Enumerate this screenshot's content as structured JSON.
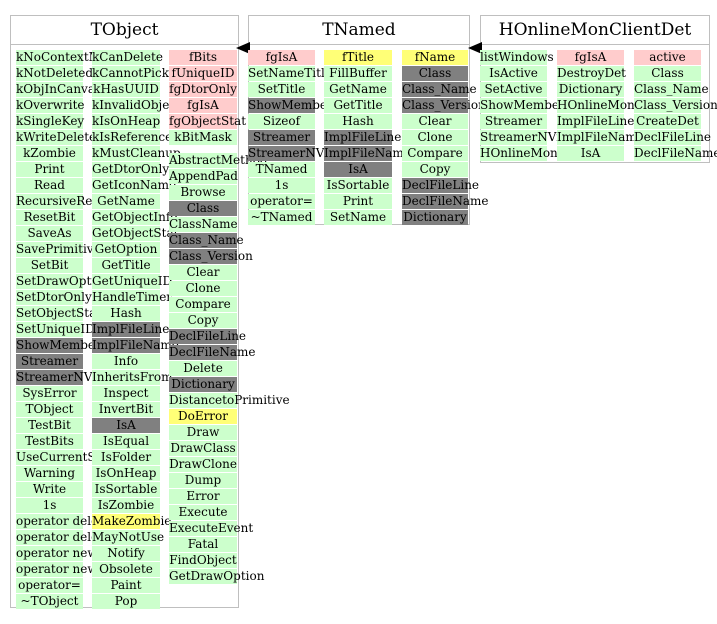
{
  "classes": [
    {
      "title": "TObject",
      "columns": [
        {
          "sections": [
            [
              {
                "t": "kNoContextMenu",
                "c": "g"
              },
              {
                "t": "kNotDeleted",
                "c": "g"
              },
              {
                "t": "kObjInCanvas",
                "c": "g"
              },
              {
                "t": "kOverwrite",
                "c": "g"
              },
              {
                "t": "kSingleKey",
                "c": "g"
              },
              {
                "t": "kWriteDelete",
                "c": "g"
              },
              {
                "t": "kZombie",
                "c": "g"
              },
              {
                "t": "Print",
                "c": "g"
              },
              {
                "t": "Read",
                "c": "g"
              },
              {
                "t": "RecursiveRemove",
                "c": "g"
              },
              {
                "t": "ResetBit",
                "c": "g"
              },
              {
                "t": "SaveAs",
                "c": "g"
              },
              {
                "t": "SavePrimitive",
                "c": "g"
              },
              {
                "t": "SetBit",
                "c": "g"
              },
              {
                "t": "SetDrawOption",
                "c": "g"
              },
              {
                "t": "SetDtorOnly",
                "c": "g"
              },
              {
                "t": "SetObjectStat",
                "c": "g"
              },
              {
                "t": "SetUniqueID",
                "c": "g"
              },
              {
                "t": "ShowMembers",
                "c": "d"
              },
              {
                "t": "Streamer",
                "c": "d"
              },
              {
                "t": "StreamerNVirtual",
                "c": "d"
              },
              {
                "t": "SysError",
                "c": "g"
              },
              {
                "t": "TObject",
                "c": "g"
              },
              {
                "t": "TestBit",
                "c": "g"
              },
              {
                "t": "TestBits",
                "c": "g"
              },
              {
                "t": "UseCurrentStyle",
                "c": "g"
              },
              {
                "t": "Warning",
                "c": "g"
              },
              {
                "t": "Write",
                "c": "g"
              },
              {
                "t": "1s",
                "c": "g"
              },
              {
                "t": "operator delete",
                "c": "g"
              },
              {
                "t": "operator delete[]",
                "c": "g"
              },
              {
                "t": "operator new",
                "c": "g"
              },
              {
                "t": "operator new[]",
                "c": "g"
              },
              {
                "t": "operator=",
                "c": "g"
              },
              {
                "t": "~TObject",
                "c": "g"
              }
            ]
          ]
        },
        {
          "sections": [
            [
              {
                "t": "kCanDelete",
                "c": "g"
              },
              {
                "t": "kCannotPick",
                "c": "g"
              },
              {
                "t": "kHasUUID",
                "c": "g"
              },
              {
                "t": "kInvalidObject",
                "c": "g"
              },
              {
                "t": "kIsOnHeap",
                "c": "g"
              },
              {
                "t": "kIsReferenced",
                "c": "g"
              },
              {
                "t": "kMustCleanup",
                "c": "g"
              },
              {
                "t": "GetDtorOnly",
                "c": "g"
              },
              {
                "t": "GetIconName",
                "c": "g"
              },
              {
                "t": "GetName",
                "c": "g"
              },
              {
                "t": "GetObjectInfo",
                "c": "g"
              },
              {
                "t": "GetObjectStat",
                "c": "g"
              },
              {
                "t": "GetOption",
                "c": "g"
              },
              {
                "t": "GetTitle",
                "c": "g"
              },
              {
                "t": "GetUniqueID",
                "c": "g"
              },
              {
                "t": "HandleTimer",
                "c": "g"
              },
              {
                "t": "Hash",
                "c": "g"
              },
              {
                "t": "ImplFileLine",
                "c": "d"
              },
              {
                "t": "ImplFileName",
                "c": "d"
              },
              {
                "t": "Info",
                "c": "g"
              },
              {
                "t": "InheritsFrom",
                "c": "g"
              },
              {
                "t": "Inspect",
                "c": "g"
              },
              {
                "t": "InvertBit",
                "c": "g"
              },
              {
                "t": "IsA",
                "c": "d"
              },
              {
                "t": "IsEqual",
                "c": "g"
              },
              {
                "t": "IsFolder",
                "c": "g"
              },
              {
                "t": "IsOnHeap",
                "c": "g"
              },
              {
                "t": "IsSortable",
                "c": "g"
              },
              {
                "t": "IsZombie",
                "c": "g"
              },
              {
                "t": "MakeZombie",
                "c": "y"
              },
              {
                "t": "MayNotUse",
                "c": "g"
              },
              {
                "t": "Notify",
                "c": "g"
              },
              {
                "t": "Obsolete",
                "c": "g"
              },
              {
                "t": "Paint",
                "c": "g"
              },
              {
                "t": "Pop",
                "c": "g"
              }
            ]
          ]
        },
        {
          "sections": [
            [
              {
                "t": "fBits",
                "c": "p"
              },
              {
                "t": "fUniqueID",
                "c": "p"
              },
              {
                "t": "fgDtorOnly",
                "c": "p"
              },
              {
                "t": "fgIsA",
                "c": "p"
              },
              {
                "t": "fgObjectStat",
                "c": "p"
              },
              {
                "t": "kBitMask",
                "c": "g"
              }
            ],
            [
              {
                "t": "AbstractMethod",
                "c": "g"
              },
              {
                "t": "AppendPad",
                "c": "g"
              },
              {
                "t": "Browse",
                "c": "g"
              },
              {
                "t": "Class",
                "c": "d"
              },
              {
                "t": "ClassName",
                "c": "g"
              },
              {
                "t": "Class_Name",
                "c": "d"
              },
              {
                "t": "Class_Version",
                "c": "d"
              },
              {
                "t": "Clear",
                "c": "g"
              },
              {
                "t": "Clone",
                "c": "g"
              },
              {
                "t": "Compare",
                "c": "g"
              },
              {
                "t": "Copy",
                "c": "g"
              },
              {
                "t": "DeclFileLine",
                "c": "d"
              },
              {
                "t": "DeclFileName",
                "c": "d"
              },
              {
                "t": "Delete",
                "c": "g"
              },
              {
                "t": "Dictionary",
                "c": "d"
              },
              {
                "t": "DistancetoPrimitive",
                "c": "g"
              },
              {
                "t": "DoError",
                "c": "y"
              },
              {
                "t": "Draw",
                "c": "g"
              },
              {
                "t": "DrawClass",
                "c": "g"
              },
              {
                "t": "DrawClone",
                "c": "g"
              },
              {
                "t": "Dump",
                "c": "g"
              },
              {
                "t": "Error",
                "c": "g"
              },
              {
                "t": "Execute",
                "c": "g"
              },
              {
                "t": "ExecuteEvent",
                "c": "g"
              },
              {
                "t": "Fatal",
                "c": "g"
              },
              {
                "t": "FindObject",
                "c": "g"
              },
              {
                "t": "GetDrawOption",
                "c": "g"
              }
            ]
          ]
        }
      ]
    },
    {
      "title": "TNamed",
      "columns": [
        {
          "sections": [
            [
              {
                "t": "fgIsA",
                "c": "p"
              },
              {
                "t": "SetNameTitle",
                "c": "g"
              },
              {
                "t": "SetTitle",
                "c": "g"
              },
              {
                "t": "ShowMembers",
                "c": "d"
              },
              {
                "t": "Sizeof",
                "c": "g"
              },
              {
                "t": "Streamer",
                "c": "d"
              },
              {
                "t": "StreamerNVirtual",
                "c": "d"
              },
              {
                "t": "TNamed",
                "c": "g"
              },
              {
                "t": "1s",
                "c": "g"
              },
              {
                "t": "operator=",
                "c": "g"
              },
              {
                "t": "~TNamed",
                "c": "g"
              }
            ]
          ]
        },
        {
          "sections": [
            [
              {
                "t": "fTitle",
                "c": "y"
              },
              {
                "t": "FillBuffer",
                "c": "g"
              },
              {
                "t": "GetName",
                "c": "g"
              },
              {
                "t": "GetTitle",
                "c": "g"
              },
              {
                "t": "Hash",
                "c": "g"
              },
              {
                "t": "ImplFileLine",
                "c": "d"
              },
              {
                "t": "ImplFileName",
                "c": "d"
              },
              {
                "t": "IsA",
                "c": "d"
              },
              {
                "t": "IsSortable",
                "c": "g"
              },
              {
                "t": "Print",
                "c": "g"
              },
              {
                "t": "SetName",
                "c": "g"
              }
            ]
          ]
        },
        {
          "sections": [
            [
              {
                "t": "fName",
                "c": "y"
              },
              {
                "t": "Class",
                "c": "d"
              },
              {
                "t": "Class_Name",
                "c": "d"
              },
              {
                "t": "Class_Version",
                "c": "d"
              },
              {
                "t": "Clear",
                "c": "g"
              },
              {
                "t": "Clone",
                "c": "g"
              },
              {
                "t": "Compare",
                "c": "g"
              },
              {
                "t": "Copy",
                "c": "g"
              },
              {
                "t": "DeclFileLine",
                "c": "d"
              },
              {
                "t": "DeclFileName",
                "c": "d"
              },
              {
                "t": "Dictionary",
                "c": "d"
              }
            ]
          ]
        }
      ]
    },
    {
      "title": "HOnlineMonClientDet",
      "columns": [
        {
          "sections": [
            [
              {
                "t": "listWindows",
                "c": "g"
              },
              {
                "t": "IsActive",
                "c": "g"
              },
              {
                "t": "SetActive",
                "c": "g"
              },
              {
                "t": "ShowMembers",
                "c": "g"
              },
              {
                "t": "Streamer",
                "c": "g"
              },
              {
                "t": "StreamerNVirtual",
                "c": "g"
              },
              {
                "t": "HOnlineMonClientDet",
                "c": "g"
              }
            ]
          ]
        },
        {
          "sections": [
            [
              {
                "t": "fgIsA",
                "c": "p"
              },
              {
                "t": "DestroyDet",
                "c": "g"
              },
              {
                "t": "Dictionary",
                "c": "g"
              },
              {
                "t": "HOnlineMonClientDet",
                "c": "g"
              },
              {
                "t": "ImplFileLine",
                "c": "g"
              },
              {
                "t": "ImplFileName",
                "c": "g"
              },
              {
                "t": "IsA",
                "c": "g"
              }
            ]
          ]
        },
        {
          "sections": [
            [
              {
                "t": "active",
                "c": "p"
              },
              {
                "t": "Class",
                "c": "g"
              },
              {
                "t": "Class_Name",
                "c": "g"
              },
              {
                "t": "Class_Version",
                "c": "g"
              },
              {
                "t": "CreateDet",
                "c": "g"
              },
              {
                "t": "DeclFileLine",
                "c": "g"
              },
              {
                "t": "DeclFileName",
                "c": "g"
              }
            ]
          ]
        }
      ]
    }
  ]
}
